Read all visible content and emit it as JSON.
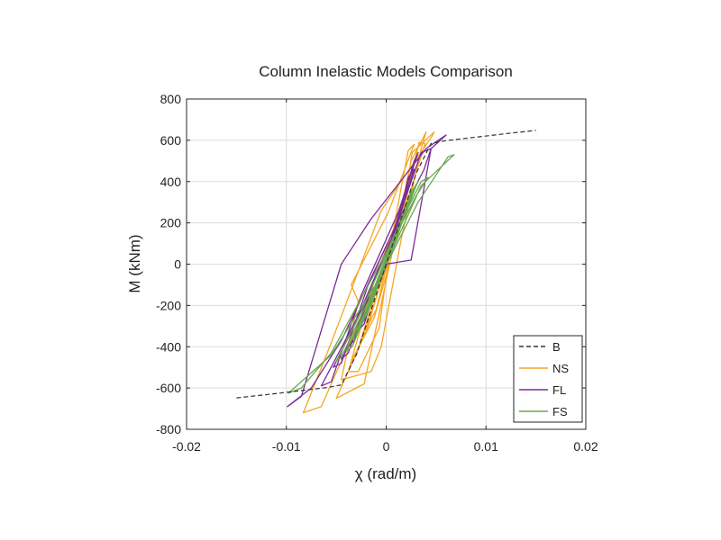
{
  "chart_data": {
    "type": "line",
    "title": "Column Inelastic Models Comparison",
    "xlabel": "χ (rad/m)",
    "ylabel": "M (kNm)",
    "xlim": [
      -0.02,
      0.02
    ],
    "ylim": [
      -800,
      800
    ],
    "xticks": [
      -0.02,
      -0.01,
      0,
      0.01,
      0.02
    ],
    "xtick_labels": [
      "-0.02",
      "-0.01",
      "0",
      "0.01",
      "0.02"
    ],
    "yticks": [
      -800,
      -600,
      -400,
      -200,
      0,
      200,
      400,
      600,
      800
    ],
    "ytick_labels": [
      "-800",
      "-600",
      "-400",
      "-200",
      "0",
      "200",
      "400",
      "600",
      "800"
    ],
    "grid": true,
    "legend_position": "bottom-right",
    "series": [
      {
        "name": "B",
        "color": "#333333",
        "dashed": true,
        "points": [
          [
            -0.015,
            -648
          ],
          [
            -0.012,
            -632
          ],
          [
            -0.009,
            -615
          ],
          [
            -0.006,
            -598
          ],
          [
            -0.0045,
            -585
          ],
          [
            -0.003,
            -440
          ],
          [
            -0.0015,
            -220
          ],
          [
            0,
            0
          ],
          [
            0.0015,
            220
          ],
          [
            0.003,
            440
          ],
          [
            0.0045,
            585
          ],
          [
            0.006,
            598
          ],
          [
            0.009,
            615
          ],
          [
            0.012,
            632
          ],
          [
            0.015,
            648
          ]
        ]
      },
      {
        "name": "NS",
        "color": "#F5A623",
        "dashed": false,
        "points": [
          [
            0,
            0
          ],
          [
            0.0014,
            180
          ],
          [
            0.0026,
            540
          ],
          [
            0.0048,
            640
          ],
          [
            0.0046,
            620
          ],
          [
            -0.0005,
            260
          ],
          [
            -0.0055,
            -380
          ],
          [
            -0.0083,
            -720
          ],
          [
            -0.0065,
            -690
          ],
          [
            -0.0045,
            -470
          ],
          [
            0.0012,
            140
          ],
          [
            0.0033,
            590
          ],
          [
            0.0039,
            585
          ],
          [
            0.0008,
            100
          ],
          [
            -0.0025,
            -380
          ],
          [
            -0.005,
            -650
          ],
          [
            -0.0022,
            -580
          ],
          [
            0,
            -80
          ],
          [
            0.0025,
            500
          ],
          [
            0.004,
            640
          ],
          [
            0.0035,
            560
          ],
          [
            0.0015,
            120
          ],
          [
            -0.0005,
            -400
          ],
          [
            -0.0015,
            -520
          ],
          [
            -0.0045,
            -560
          ],
          [
            -0.0028,
            -180
          ],
          [
            -0.0035,
            -100
          ],
          [
            0.0002,
            250
          ],
          [
            0.0028,
            580
          ],
          [
            0.0022,
            550
          ],
          [
            0.0005,
            110
          ],
          [
            -0.0007,
            -310
          ],
          [
            -0.0028,
            -520
          ],
          [
            -0.0038,
            -520
          ],
          [
            -0.0012,
            -80
          ],
          [
            0.0008,
            180
          ],
          [
            0.0025,
            430
          ],
          [
            0.002,
            380
          ],
          [
            0.0005,
            30
          ],
          [
            -0.0012,
            -260
          ],
          [
            -0.0035,
            -470
          ],
          [
            -0.003,
            -440
          ],
          [
            -0.0008,
            -100
          ],
          [
            0.001,
            120
          ],
          [
            0.002,
            300
          ],
          [
            0.0015,
            280
          ],
          [
            0.0003,
            40
          ],
          [
            -0.001,
            -220
          ],
          [
            -0.0025,
            -360
          ],
          [
            -0.002,
            -330
          ],
          [
            -0.0005,
            -80
          ],
          [
            0.0008,
            100
          ],
          [
            0.0015,
            230
          ]
        ]
      },
      {
        "name": "FL",
        "color": "#7B2C96",
        "dashed": false,
        "points": [
          [
            0,
            0
          ],
          [
            0.0025,
            20
          ],
          [
            0.0045,
            560
          ],
          [
            0.006,
            625
          ],
          [
            0.004,
            560
          ],
          [
            -0.0015,
            220
          ],
          [
            -0.0045,
            0
          ],
          [
            -0.0085,
            -640
          ],
          [
            -0.0099,
            -690
          ],
          [
            -0.0075,
            -600
          ],
          [
            -0.0045,
            -370
          ],
          [
            0.0008,
            170
          ],
          [
            0.0038,
            460
          ],
          [
            0.0045,
            560
          ],
          [
            0.0035,
            540
          ],
          [
            0.0005,
            120
          ],
          [
            -0.0028,
            -250
          ],
          [
            -0.0065,
            -590
          ],
          [
            -0.0055,
            -570
          ],
          [
            -0.0025,
            -150
          ],
          [
            0.0012,
            250
          ],
          [
            0.0032,
            540
          ],
          [
            0.0028,
            500
          ],
          [
            0.0003,
            80
          ],
          [
            -0.003,
            -280
          ],
          [
            -0.0053,
            -500
          ],
          [
            -0.0045,
            -480
          ],
          [
            -0.0018,
            -100
          ],
          [
            0.0008,
            170
          ],
          [
            0.0028,
            460
          ],
          [
            0.0022,
            420
          ],
          [
            0.0005,
            50
          ],
          [
            -0.0022,
            -270
          ],
          [
            -0.0045,
            -460
          ],
          [
            -0.0038,
            -430
          ],
          [
            -0.0012,
            -70
          ],
          [
            0.0008,
            140
          ],
          [
            0.0022,
            380
          ],
          [
            0.0018,
            340
          ],
          [
            0.0002,
            40
          ],
          [
            -0.0018,
            -220
          ],
          [
            -0.0038,
            -400
          ],
          [
            -0.0032,
            -370
          ],
          [
            -0.001,
            -50
          ],
          [
            0.0006,
            110
          ],
          [
            0.0018,
            300
          ],
          [
            0.0014,
            270
          ],
          [
            0.0001,
            20
          ],
          [
            -0.0015,
            -180
          ],
          [
            -0.0028,
            -320
          ],
          [
            -0.0022,
            -290
          ],
          [
            -0.0006,
            -40
          ],
          [
            0.0005,
            80
          ],
          [
            0.0012,
            220
          ]
        ]
      },
      {
        "name": "FS",
        "color": "#6AA84F",
        "dashed": false,
        "points": [
          [
            0,
            0
          ],
          [
            0.0035,
            380
          ],
          [
            0.0068,
            530
          ],
          [
            0.0062,
            520
          ],
          [
            0.0032,
            300
          ],
          [
            -0.0008,
            -80
          ],
          [
            -0.0055,
            -440
          ],
          [
            -0.0098,
            -625
          ],
          [
            -0.0085,
            -600
          ],
          [
            -0.0055,
            -430
          ],
          [
            0.0005,
            100
          ],
          [
            0.003,
            330
          ],
          [
            0.0042,
            420
          ],
          [
            0.0035,
            400
          ],
          [
            0.0008,
            140
          ],
          [
            -0.0025,
            -230
          ],
          [
            -0.005,
            -470
          ],
          [
            -0.0045,
            -450
          ],
          [
            -0.0015,
            -150
          ],
          [
            0.0012,
            180
          ],
          [
            0.0032,
            400
          ],
          [
            0.0028,
            370
          ],
          [
            0.0004,
            70
          ],
          [
            -0.002,
            -220
          ],
          [
            -0.004,
            -420
          ],
          [
            -0.0034,
            -400
          ],
          [
            -0.0008,
            -100
          ],
          [
            0.0012,
            150
          ],
          [
            0.003,
            380
          ],
          [
            0.0025,
            350
          ],
          [
            0.0003,
            60
          ],
          [
            -0.0018,
            -200
          ],
          [
            -0.0035,
            -370
          ],
          [
            -0.003,
            -340
          ],
          [
            -0.0006,
            -60
          ],
          [
            0.001,
            130
          ],
          [
            0.0024,
            300
          ],
          [
            0.002,
            280
          ],
          [
            0.0002,
            30
          ],
          [
            -0.0015,
            -180
          ],
          [
            -0.003,
            -320
          ],
          [
            -0.0025,
            -300
          ],
          [
            -0.0004,
            -40
          ],
          [
            0.0008,
            110
          ],
          [
            0.002,
            260
          ],
          [
            0.0016,
            240
          ],
          [
            0.0001,
            10
          ],
          [
            -0.0012,
            -150
          ],
          [
            -0.0025,
            -280
          ],
          [
            -0.002,
            -250
          ],
          [
            -0.0003,
            -20
          ],
          [
            0.0006,
            90
          ],
          [
            0.0015,
            200
          ],
          [
            0.0012,
            180
          ],
          [
            0,
            0
          ],
          [
            -0.001,
            -120
          ],
          [
            -0.002,
            -230
          ],
          [
            -0.0015,
            -200
          ],
          [
            -0.0002,
            -10
          ],
          [
            0.0005,
            70
          ],
          [
            0.0012,
            170
          ]
        ]
      }
    ]
  }
}
